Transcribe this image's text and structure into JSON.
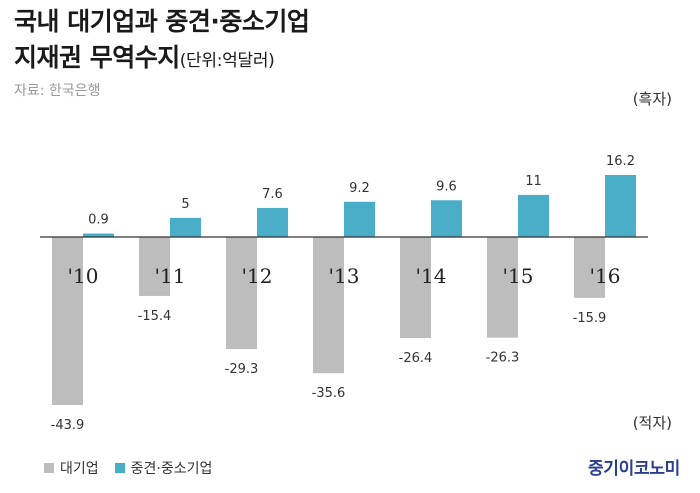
{
  "header": {
    "title_line1": "국내 대기업과 중견·중소기업",
    "title_line2": "지재권 무역수지",
    "unit": "(단위:억달러)",
    "source": "자료: 한국은행"
  },
  "labels": {
    "surplus": "(흑자)",
    "deficit": "(적자)"
  },
  "brand": "중기이코노미",
  "colors": {
    "large_firm": "#bdbdbd",
    "sme": "#4aaec8",
    "axis": "#333333"
  },
  "chart_data": {
    "type": "bar",
    "categories": [
      "'10",
      "'11",
      "'12",
      "'13",
      "'14",
      "'15",
      "'16"
    ],
    "series": [
      {
        "name": "대기업",
        "values": [
          -43.9,
          -15.4,
          -29.3,
          -35.6,
          -26.4,
          -26.3,
          -15.9
        ]
      },
      {
        "name": "중견·중소기업",
        "values": [
          0.9,
          5,
          7.6,
          9.2,
          9.6,
          11,
          16.2
        ]
      }
    ],
    "grid": false,
    "legend": "bottom-left"
  }
}
